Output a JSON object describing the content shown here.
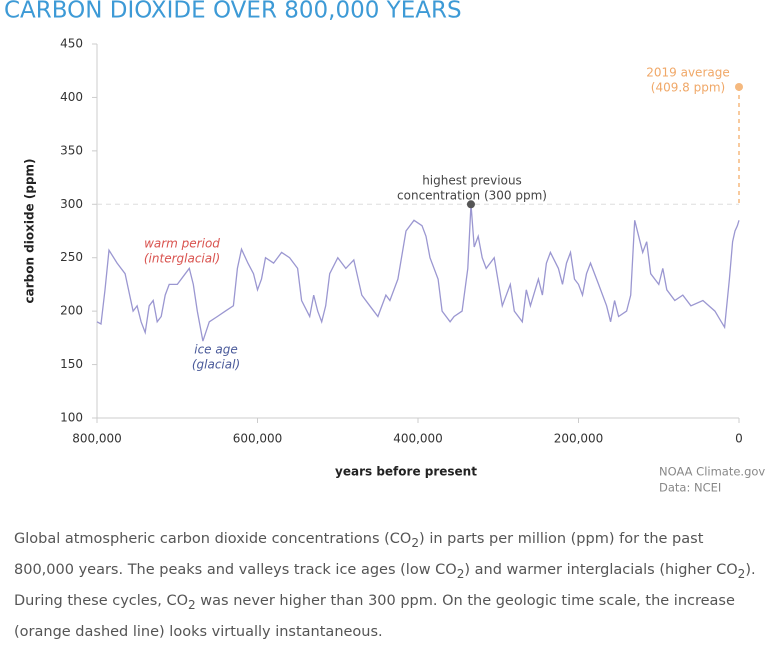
{
  "chart_data": {
    "type": "line",
    "title": "CARBON DIOXIDE OVER 800,000 YEARS",
    "y_label": "carbon dioxide (ppm)",
    "x_label": "years before present",
    "xlim": [
      800000,
      0
    ],
    "xticks": [
      {
        "value": 800000,
        "label": "800,000"
      },
      {
        "value": 600000,
        "label": "600,000"
      },
      {
        "value": 400000,
        "label": "400,000"
      },
      {
        "value": 200000,
        "label": "200,000"
      },
      0
    ],
    "ylim": [
      100,
      450
    ],
    "yticks": [
      100,
      150,
      200,
      250,
      300,
      350,
      400,
      450
    ],
    "series": [
      {
        "color": "#9b97d1",
        "x": [
          800000,
          795000,
          790000,
          785000,
          775000,
          765000,
          755000,
          750000,
          745000,
          740000,
          735000,
          730000,
          725000,
          720000,
          715000,
          710000,
          700000,
          690000,
          685000,
          680000,
          675000,
          668000,
          660000,
          650000,
          640000,
          630000,
          625000,
          620000,
          612000,
          605000,
          600000,
          595000,
          590000,
          580000,
          570000,
          560000,
          550000,
          545000,
          535000,
          530000,
          525000,
          520000,
          515000,
          510000,
          500000,
          490000,
          480000,
          470000,
          460000,
          450000,
          440000,
          435000,
          425000,
          415000,
          405000,
          395000,
          390000,
          385000,
          375000,
          370000,
          360000,
          355000,
          345000,
          338000,
          334000,
          330000,
          325000,
          320000,
          315000,
          305000,
          295000,
          285000,
          280000,
          270000,
          265000,
          260000,
          250000,
          245000,
          240000,
          235000,
          225000,
          220000,
          215000,
          210000,
          205000,
          200000,
          195000,
          190000,
          185000,
          175000,
          165000,
          160000,
          155000,
          150000,
          140000,
          135000,
          130000,
          125000,
          120000,
          115000,
          110000,
          100000,
          95000,
          90000,
          80000,
          70000,
          60000,
          45000,
          30000,
          22000,
          18000,
          12000,
          8000,
          5000,
          2000,
          0
        ],
        "values": [
          190,
          188,
          220,
          257,
          245,
          235,
          200,
          205,
          190,
          180,
          205,
          210,
          190,
          195,
          215,
          225,
          225,
          235,
          240,
          225,
          200,
          172,
          190,
          195,
          200,
          205,
          240,
          258,
          245,
          235,
          220,
          230,
          250,
          245,
          255,
          250,
          240,
          210,
          195,
          215,
          200,
          190,
          205,
          235,
          250,
          240,
          248,
          215,
          205,
          195,
          215,
          210,
          230,
          275,
          285,
          280,
          270,
          250,
          230,
          200,
          190,
          195,
          200,
          240,
          300,
          260,
          270,
          250,
          240,
          250,
          205,
          225,
          200,
          190,
          220,
          205,
          230,
          215,
          245,
          255,
          240,
          225,
          245,
          255,
          230,
          225,
          215,
          235,
          245,
          225,
          205,
          190,
          210,
          195,
          200,
          215,
          285,
          270,
          255,
          265,
          235,
          225,
          240,
          220,
          210,
          215,
          205,
          210,
          200,
          190,
          185,
          230,
          265,
          275,
          280,
          285
        ]
      }
    ],
    "reference_points": [
      {
        "x": 334000,
        "y": 300,
        "color": "#555555"
      },
      {
        "x": 0,
        "y": 409.8,
        "color": "#f5b97f"
      }
    ],
    "annotations": {
      "warm": [
        "warm period",
        "(interglacial)"
      ],
      "ice": [
        "ice age",
        "(glacial)"
      ],
      "highest": [
        "highest previous",
        "concentration (300 ppm)"
      ],
      "latest": [
        "2019 average",
        "(409.8 ppm)"
      ]
    },
    "credit": [
      "NOAA Climate.gov",
      "Data: NCEI"
    ]
  },
  "caption": [
    "Global atmospheric carbon dioxide concentrations (CO",
    "2",
    ") in parts per million (ppm) for the past 800,000 years. The peaks and valleys track ice ages (low CO",
    "2",
    ") and warmer interglacials (higher CO",
    "2",
    "). During these cycles, CO",
    "2",
    " was never higher than 300 ppm. On the geologic time scale, the increase (orange dashed line) looks virtually instantaneous."
  ]
}
